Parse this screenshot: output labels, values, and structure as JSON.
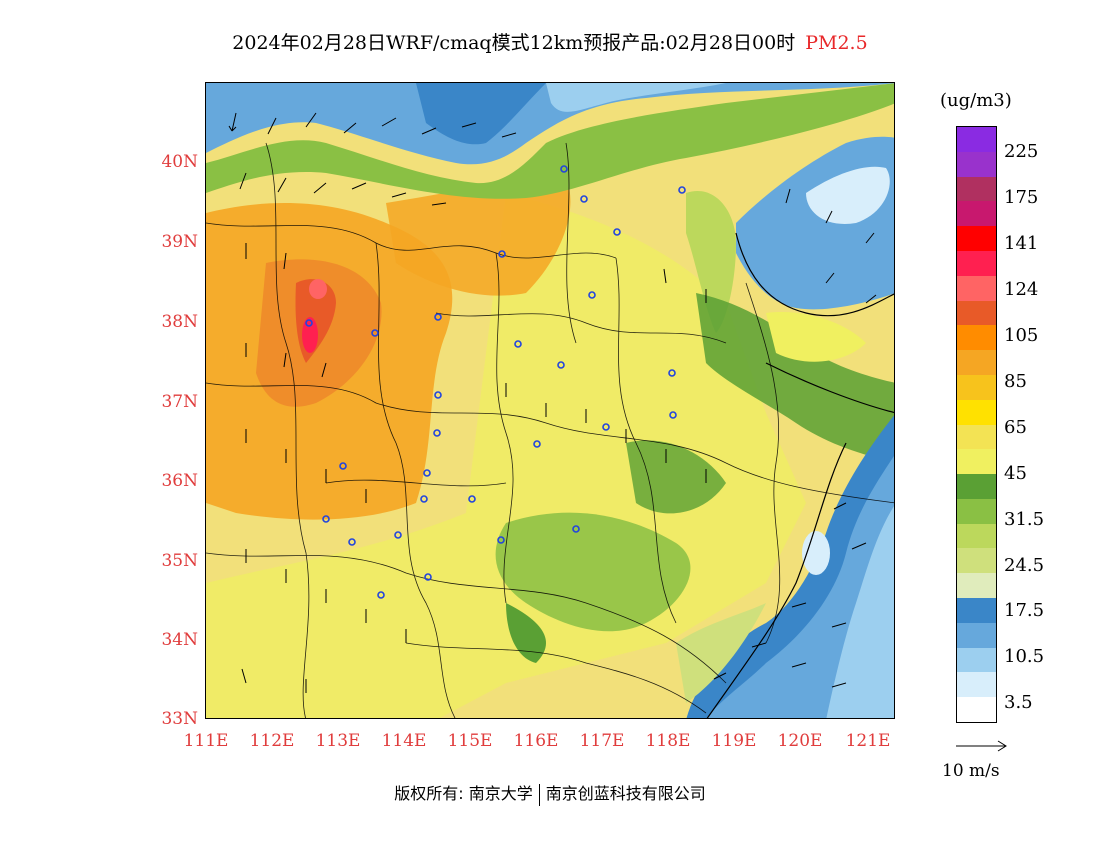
{
  "title": {
    "main": "2024年02月28日WRF/cmaq模式12km预报产品:02月28日00时",
    "species": "PM2.5"
  },
  "axes": {
    "lat_labels": [
      "40N",
      "39N",
      "38N",
      "37N",
      "36N",
      "35N",
      "34N",
      "33N"
    ],
    "lon_labels": [
      "111E",
      "112E",
      "113E",
      "114E",
      "115E",
      "116E",
      "117E",
      "118E",
      "119E",
      "120E",
      "121E"
    ]
  },
  "legend": {
    "unit": "(ug/m3)",
    "labels": [
      "225",
      "175",
      "141",
      "124",
      "105",
      "85",
      "65",
      "45",
      "31.5",
      "24.5",
      "17.5",
      "10.5",
      "3.5"
    ],
    "colors": [
      "#8a2be2",
      "#9932cc",
      "#b03060",
      "#c8186e",
      "#ff0000",
      "#ff2050",
      "#ff6464",
      "#e85a28",
      "#ff8c00",
      "#f5a623",
      "#f7c31c",
      "#ffe100",
      "#f3e354",
      "#f0f060",
      "#5aa034",
      "#8ac044",
      "#bcd85c",
      "#cfe07c",
      "#e0ecbc",
      "#3a86c8",
      "#66a8dc",
      "#9ccfef",
      "#d8eefb",
      "#ffffff"
    ]
  },
  "wind": {
    "reference_label": "10 m/s"
  },
  "footer": {
    "copyright_label": "版权所有:",
    "org1": "南京大学",
    "org2": "南京创蓝科技有限公司"
  }
}
